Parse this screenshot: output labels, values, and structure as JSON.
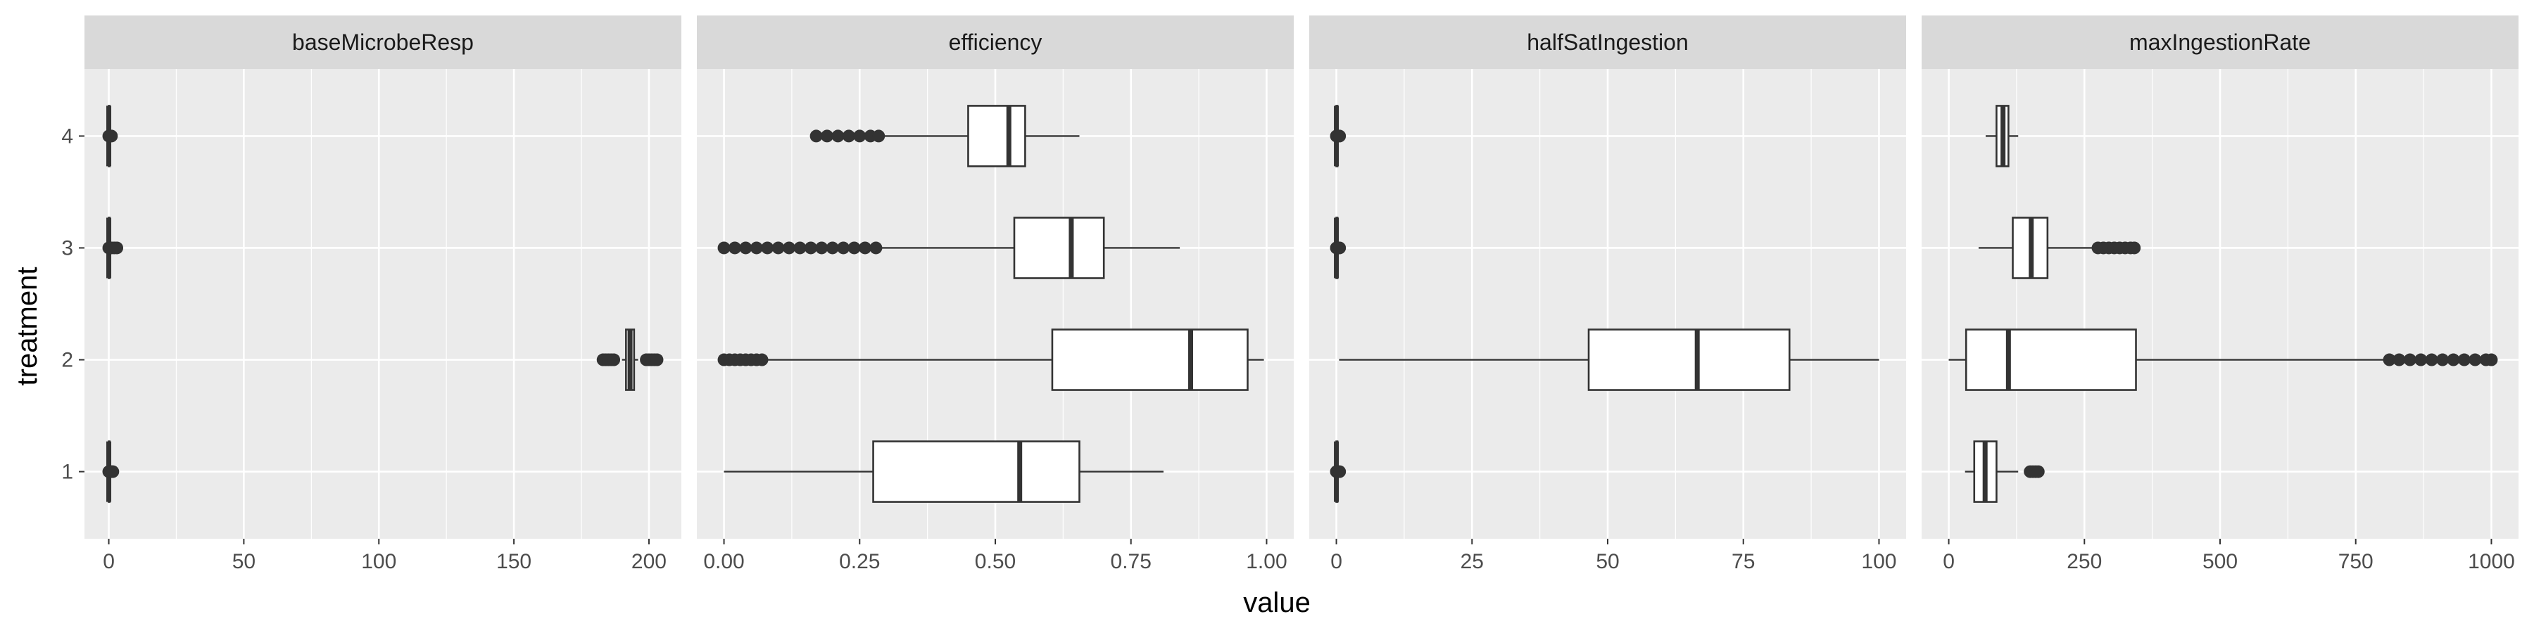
{
  "chart_data": {
    "type": "boxplot",
    "xlabel": "value",
    "ylabel": "treatment",
    "categories": [
      "1",
      "2",
      "3",
      "4"
    ],
    "colors": {
      "panel_bg": "#ebebeb",
      "strip_bg": "#d9d9d9",
      "grid": "#ffffff",
      "box_fill": "#ffffff",
      "stroke": "#333333"
    },
    "panels": [
      {
        "name": "baseMicrobeResp",
        "xlim": [
          -9,
          212
        ],
        "xticks": [
          0,
          50,
          100,
          150,
          200
        ],
        "xtick_labels": [
          "0",
          "50",
          "100",
          "150",
          "200"
        ],
        "boxes": [
          {
            "treatment": "1",
            "min": 0,
            "q1": 0,
            "median": 0,
            "q3": 0.3,
            "max": 0.6,
            "outliers": [
              0,
              0.5,
              1,
              1.5
            ]
          },
          {
            "treatment": "2",
            "min": 190,
            "q1": 191.5,
            "median": 193,
            "q3": 194.5,
            "max": 196,
            "outliers": [
              183,
              184,
              185,
              186,
              187,
              199,
              200,
              201,
              202,
              203
            ]
          },
          {
            "treatment": "3",
            "min": 0,
            "q1": 0,
            "median": 0,
            "q3": 0.3,
            "max": 0.6,
            "outliers": [
              0,
              1,
              2,
              3
            ]
          },
          {
            "treatment": "4",
            "min": 0,
            "q1": 0,
            "median": 0,
            "q3": 0.3,
            "max": 0.6,
            "outliers": [
              0,
              0.5,
              1
            ]
          }
        ]
      },
      {
        "name": "efficiency",
        "xlim": [
          -0.05,
          1.05
        ],
        "xticks": [
          0,
          0.25,
          0.5,
          0.75,
          1
        ],
        "xtick_labels": [
          "0.00",
          "0.25",
          "0.50",
          "0.75",
          "1.00"
        ],
        "boxes": [
          {
            "treatment": "1",
            "min": 0.0,
            "q1": 0.275,
            "median": 0.545,
            "q3": 0.655,
            "max": 0.81,
            "outliers": []
          },
          {
            "treatment": "2",
            "min": 0.08,
            "q1": 0.605,
            "median": 0.86,
            "q3": 0.965,
            "max": 0.995,
            "outliers": [
              0.0,
              0.01,
              0.02,
              0.03,
              0.04,
              0.05,
              0.06,
              0.07
            ]
          },
          {
            "treatment": "3",
            "min": 0.29,
            "q1": 0.535,
            "median": 0.64,
            "q3": 0.7,
            "max": 0.84,
            "outliers": [
              0.0,
              0.02,
              0.04,
              0.06,
              0.08,
              0.1,
              0.12,
              0.14,
              0.16,
              0.18,
              0.2,
              0.22,
              0.24,
              0.26,
              0.28
            ]
          },
          {
            "treatment": "4",
            "min": 0.29,
            "q1": 0.45,
            "median": 0.525,
            "q3": 0.555,
            "max": 0.655,
            "outliers": [
              0.17,
              0.19,
              0.21,
              0.23,
              0.25,
              0.27,
              0.285
            ]
          }
        ]
      },
      {
        "name": "halfSatIngestion",
        "xlim": [
          -5,
          105
        ],
        "xticks": [
          0,
          25,
          50,
          75,
          100
        ],
        "xtick_labels": [
          "0",
          "25",
          "50",
          "75",
          "100"
        ],
        "boxes": [
          {
            "treatment": "1",
            "min": 0,
            "q1": 0,
            "median": 0,
            "q3": 0.2,
            "max": 0.5,
            "outliers": [
              0,
              0.3,
              0.6
            ]
          },
          {
            "treatment": "2",
            "min": 0.5,
            "q1": 46.5,
            "median": 66.5,
            "q3": 83.5,
            "max": 100,
            "outliers": []
          },
          {
            "treatment": "3",
            "min": 0,
            "q1": 0,
            "median": 0,
            "q3": 0.2,
            "max": 0.5,
            "outliers": [
              0,
              0.3,
              0.6
            ]
          },
          {
            "treatment": "4",
            "min": 0,
            "q1": 0,
            "median": 0,
            "q3": 0.2,
            "max": 0.5,
            "outliers": [
              0,
              0.3,
              0.6
            ]
          }
        ]
      },
      {
        "name": "maxIngestionRate",
        "xlim": [
          -50,
          1050
        ],
        "xticks": [
          0,
          250,
          500,
          750,
          1000
        ],
        "xtick_labels": [
          "0",
          "250",
          "500",
          "750",
          "1000"
        ],
        "boxes": [
          {
            "treatment": "1",
            "min": 30,
            "q1": 47,
            "median": 67,
            "q3": 88,
            "max": 128,
            "outliers": [
              150,
              155,
              160,
              165
            ]
          },
          {
            "treatment": "2",
            "min": 0,
            "q1": 32,
            "median": 110,
            "q3": 345,
            "max": 805,
            "outliers": [
              812,
              830,
              850,
              870,
              890,
              910,
              930,
              950,
              970,
              990,
              1000
            ]
          },
          {
            "treatment": "3",
            "min": 55,
            "q1": 118,
            "median": 152,
            "q3": 182,
            "max": 268,
            "outliers": [
              275,
              285,
              295,
              305,
              315,
              325,
              335,
              342
            ]
          },
          {
            "treatment": "4",
            "min": 68,
            "q1": 88,
            "median": 100,
            "q3": 110,
            "max": 128,
            "outliers": []
          }
        ]
      }
    ]
  }
}
